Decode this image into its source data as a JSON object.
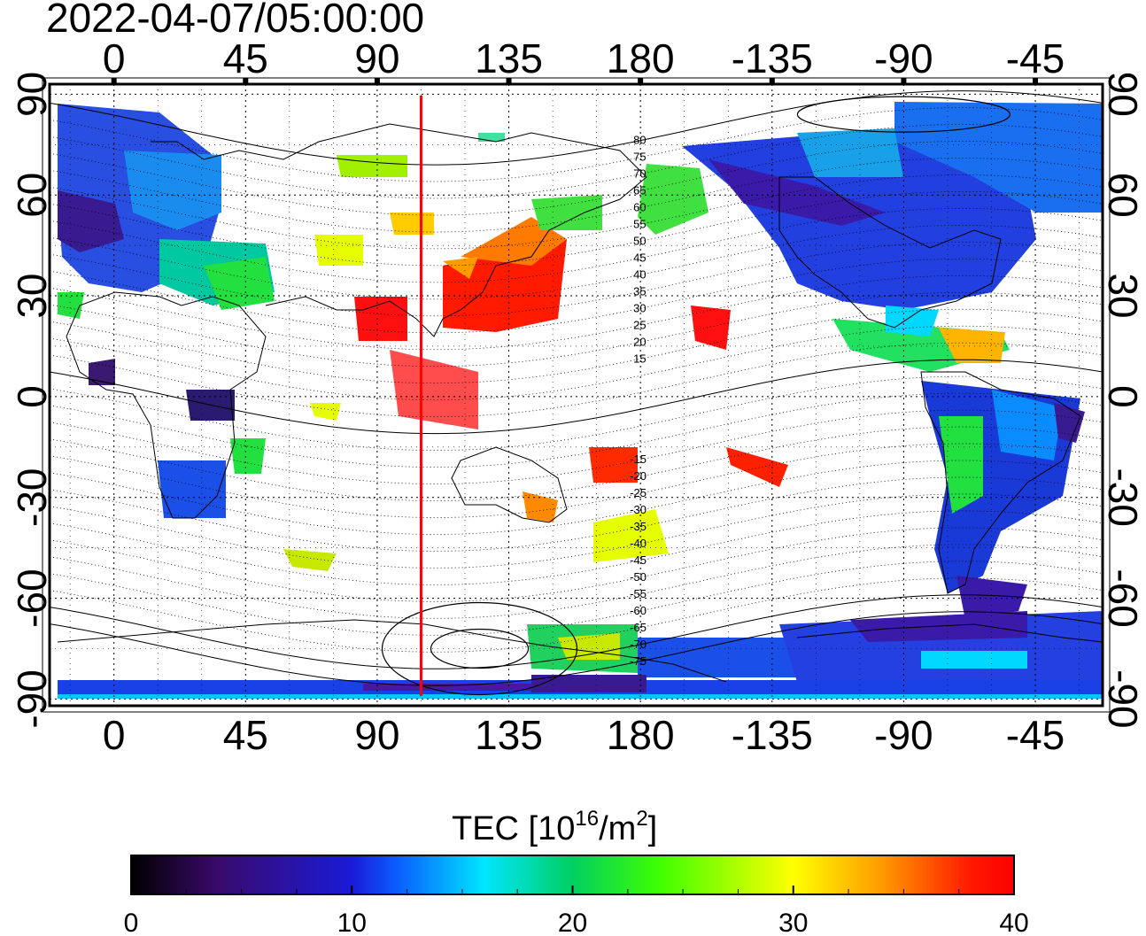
{
  "title": "2022-04-07/05:00:00",
  "map": {
    "lon_ticks_top": [
      "0",
      "45",
      "90",
      "135",
      "180",
      "-135",
      "-90",
      "-45"
    ],
    "lon_ticks_bottom": [
      "0",
      "45",
      "90",
      "135",
      "180",
      "-135",
      "-90",
      "-45"
    ],
    "lat_ticks_left": [
      "90",
      "60",
      "30",
      "0",
      "-30",
      "-60",
      "-90"
    ],
    "lat_ticks_right": [
      "90",
      "60",
      "30",
      "0",
      "-30",
      "-60",
      "-90"
    ],
    "lon_values": [
      0,
      45,
      90,
      135,
      180,
      225,
      270,
      315
    ],
    "lat_values": [
      90,
      60,
      30,
      0,
      -30,
      -60,
      -90
    ],
    "lon_range": [
      -22,
      338
    ],
    "lat_range": [
      -92,
      93
    ],
    "terminator_lon": 105,
    "terminator_color": "#ff0000",
    "mlat_labels_north": [
      "80",
      "75",
      "70",
      "65",
      "60",
      "55",
      "50",
      "45",
      "40",
      "35",
      "30",
      "25",
      "20",
      "15"
    ],
    "mlat_labels_south": [
      "-15",
      "-20",
      "-25",
      "-30",
      "-35",
      "-40",
      "-45",
      "-50",
      "-55",
      "-60",
      "-65",
      "-70",
      "-75"
    ]
  },
  "colorbar": {
    "label_main": "TEC  [10",
    "label_sup1": "16",
    "label_mid": "/m",
    "label_sup2": "2",
    "label_end": "]",
    "ticks": [
      "0",
      "10",
      "20",
      "30",
      "40"
    ],
    "tick_values": [
      0,
      10,
      20,
      30,
      40
    ],
    "min": 0,
    "max": 40,
    "colors": [
      "#000000",
      "#3a0a6e",
      "#1c1ad8",
      "#0a5cff",
      "#00e6ff",
      "#00d060",
      "#22ff00",
      "#c8ff00",
      "#ffff00",
      "#ff9a00",
      "#ff2000",
      "#ff0000"
    ]
  }
}
